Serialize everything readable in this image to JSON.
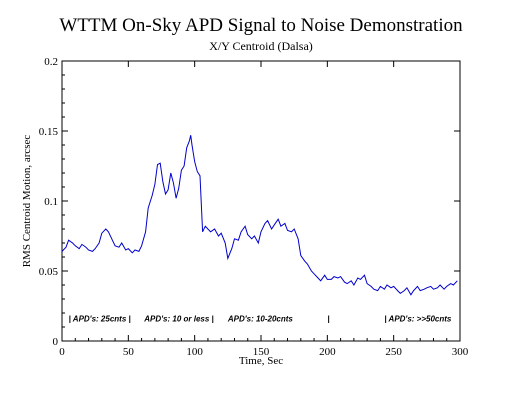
{
  "chart_data": {
    "type": "line",
    "title": "WTTM On-Sky APD Signal to Noise Demonstration",
    "subtitle": "X/Y Centroid (Dalsa)",
    "xlabel": "Time, Sec",
    "ylabel": "RMS Centroid Motion, arcsec",
    "xlim": [
      0,
      300
    ],
    "ylim": [
      0,
      0.2
    ],
    "xticks": [
      "0",
      "50",
      "100",
      "150",
      "200",
      "250",
      "300"
    ],
    "yticks": [
      "0",
      "0.05",
      "0.1",
      "0.15",
      "0.2"
    ],
    "grid": false,
    "line_color": "#0000cc",
    "annotations": [
      {
        "text": "| APD's: 25cnts |",
        "x": 5,
        "y": 0.014
      },
      {
        "text": "APD's: 10 or less |",
        "x": 62,
        "y": 0.014
      },
      {
        "text": "APD's: 10-20cnts",
        "x": 125,
        "y": 0.014
      },
      {
        "text": "|",
        "x": 200,
        "y": 0.014
      },
      {
        "text": "| APD's: >>50cnts",
        "x": 243,
        "y": 0.014
      }
    ],
    "series": [
      {
        "x": [
          0,
          3,
          5,
          8,
          10,
          13,
          15,
          18,
          20,
          23,
          25,
          28,
          30,
          33,
          35,
          38,
          40,
          43,
          45,
          48,
          50,
          53,
          55,
          58,
          60,
          63,
          65,
          68,
          70,
          72,
          74,
          76,
          78,
          80,
          82,
          84,
          86,
          88,
          90,
          92,
          94,
          96,
          97,
          98,
          100,
          102,
          104,
          106,
          108,
          110,
          112,
          115,
          118,
          120,
          123,
          125,
          128,
          130,
          133,
          135,
          138,
          140,
          143,
          145,
          148,
          150,
          153,
          155,
          158,
          160,
          163,
          165,
          168,
          170,
          173,
          175,
          178,
          180,
          183,
          185,
          188,
          190,
          193,
          195,
          198,
          200,
          203,
          205,
          208,
          210,
          213,
          215,
          218,
          220,
          223,
          225,
          228,
          230,
          233,
          235,
          238,
          240,
          243,
          245,
          248,
          250,
          253,
          255,
          258,
          260,
          263,
          265,
          268,
          270,
          273,
          275,
          278,
          280,
          283,
          285,
          288,
          290,
          293,
          295,
          298
        ],
        "y": [
          0.064,
          0.067,
          0.072,
          0.07,
          0.068,
          0.066,
          0.069,
          0.067,
          0.065,
          0.064,
          0.066,
          0.07,
          0.077,
          0.08,
          0.078,
          0.072,
          0.068,
          0.067,
          0.07,
          0.065,
          0.066,
          0.063,
          0.065,
          0.064,
          0.068,
          0.078,
          0.095,
          0.104,
          0.112,
          0.126,
          0.127,
          0.114,
          0.105,
          0.108,
          0.12,
          0.113,
          0.102,
          0.109,
          0.122,
          0.125,
          0.138,
          0.143,
          0.147,
          0.14,
          0.128,
          0.121,
          0.118,
          0.078,
          0.082,
          0.08,
          0.078,
          0.08,
          0.075,
          0.077,
          0.07,
          0.059,
          0.066,
          0.073,
          0.072,
          0.078,
          0.082,
          0.076,
          0.073,
          0.075,
          0.07,
          0.078,
          0.084,
          0.086,
          0.08,
          0.083,
          0.087,
          0.082,
          0.084,
          0.079,
          0.078,
          0.08,
          0.073,
          0.061,
          0.057,
          0.055,
          0.05,
          0.048,
          0.045,
          0.043,
          0.047,
          0.044,
          0.044,
          0.046,
          0.045,
          0.046,
          0.042,
          0.041,
          0.043,
          0.04,
          0.045,
          0.044,
          0.047,
          0.041,
          0.039,
          0.037,
          0.036,
          0.039,
          0.037,
          0.04,
          0.038,
          0.039,
          0.036,
          0.034,
          0.036,
          0.038,
          0.033,
          0.036,
          0.039,
          0.036,
          0.037,
          0.038,
          0.039,
          0.037,
          0.038,
          0.04,
          0.037,
          0.039,
          0.041,
          0.04,
          0.043
        ]
      }
    ]
  }
}
